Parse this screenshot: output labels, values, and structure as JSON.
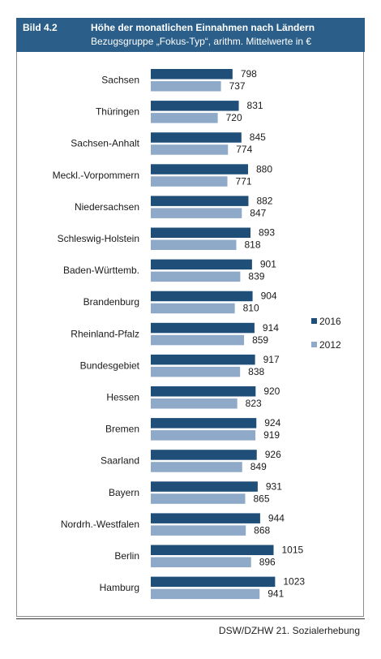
{
  "header": {
    "label": "Bild 4.2",
    "title": "Höhe der monatlichen Einnahmen nach Ländern",
    "subtitle": "Bezugsgruppe „Fokus-Typ“, arithm. Mittelwerte in €"
  },
  "source": "DSW/DZHW 21. Sozialerhebung",
  "colors": {
    "header_bg": "#2b5f89",
    "series_2016": "#1f4e79",
    "series_2012": "#8fa9c8"
  },
  "chart_data": {
    "type": "bar",
    "orientation": "horizontal",
    "categories": [
      "Sachsen",
      "Thüringen",
      "Sachsen-Anhalt",
      "Meckl.-Vorpommern",
      "Niedersachsen",
      "Schleswig-Holstein",
      "Baden-Württemb.",
      "Brandenburg",
      "Rheinland-Pfalz",
      "Bundesgebiet",
      "Hessen",
      "Bremen",
      "Saarland",
      "Bayern",
      "Nordrh.-Westfalen",
      "Berlin",
      "Hamburg"
    ],
    "series": [
      {
        "name": "2016",
        "color": "#1f4e79",
        "values": [
          798,
          831,
          845,
          880,
          882,
          893,
          901,
          904,
          914,
          917,
          920,
          924,
          926,
          931,
          944,
          1015,
          1023
        ]
      },
      {
        "name": "2012",
        "color": "#8fa9c8",
        "values": [
          737,
          720,
          774,
          771,
          847,
          818,
          839,
          810,
          859,
          838,
          823,
          919,
          849,
          865,
          868,
          896,
          941
        ]
      }
    ],
    "legend_position": "right",
    "xlim": [
      0,
      1023
    ],
    "grid": false
  }
}
